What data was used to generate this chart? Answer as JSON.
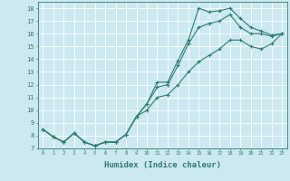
{
  "xlabel": "Humidex (Indice chaleur)",
  "xlim": [
    -0.5,
    23.5
  ],
  "ylim": [
    7,
    18.5
  ],
  "yticks": [
    7,
    8,
    9,
    10,
    11,
    12,
    13,
    14,
    15,
    16,
    17,
    18
  ],
  "xticks": [
    0,
    1,
    2,
    3,
    4,
    5,
    6,
    7,
    8,
    9,
    10,
    11,
    12,
    13,
    14,
    15,
    16,
    17,
    18,
    19,
    20,
    21,
    22,
    23
  ],
  "line_color": "#2e7d6e",
  "bg_color": "#cce8f0",
  "grid_color": "#ffffff",
  "line1_y": [
    8.5,
    7.9,
    7.5,
    8.2,
    7.5,
    7.2,
    7.5,
    7.5,
    8.1,
    9.5,
    10.5,
    12.2,
    12.2,
    13.9,
    15.5,
    18.0,
    17.7,
    17.8,
    18.0,
    17.2,
    16.5,
    16.2,
    15.9,
    16.0
  ],
  "line2_y": [
    8.5,
    7.9,
    7.5,
    8.2,
    7.5,
    7.2,
    7.5,
    7.5,
    8.1,
    9.5,
    10.5,
    11.8,
    12.0,
    13.5,
    15.2,
    16.5,
    16.8,
    17.0,
    17.5,
    16.5,
    16.0,
    16.0,
    15.8,
    16.0
  ],
  "line3_y": [
    8.5,
    7.9,
    7.5,
    8.2,
    7.5,
    7.2,
    7.5,
    7.5,
    8.1,
    9.5,
    10.0,
    11.0,
    11.2,
    12.0,
    13.0,
    13.8,
    14.3,
    14.8,
    15.5,
    15.5,
    15.0,
    14.8,
    15.2,
    16.0
  ]
}
